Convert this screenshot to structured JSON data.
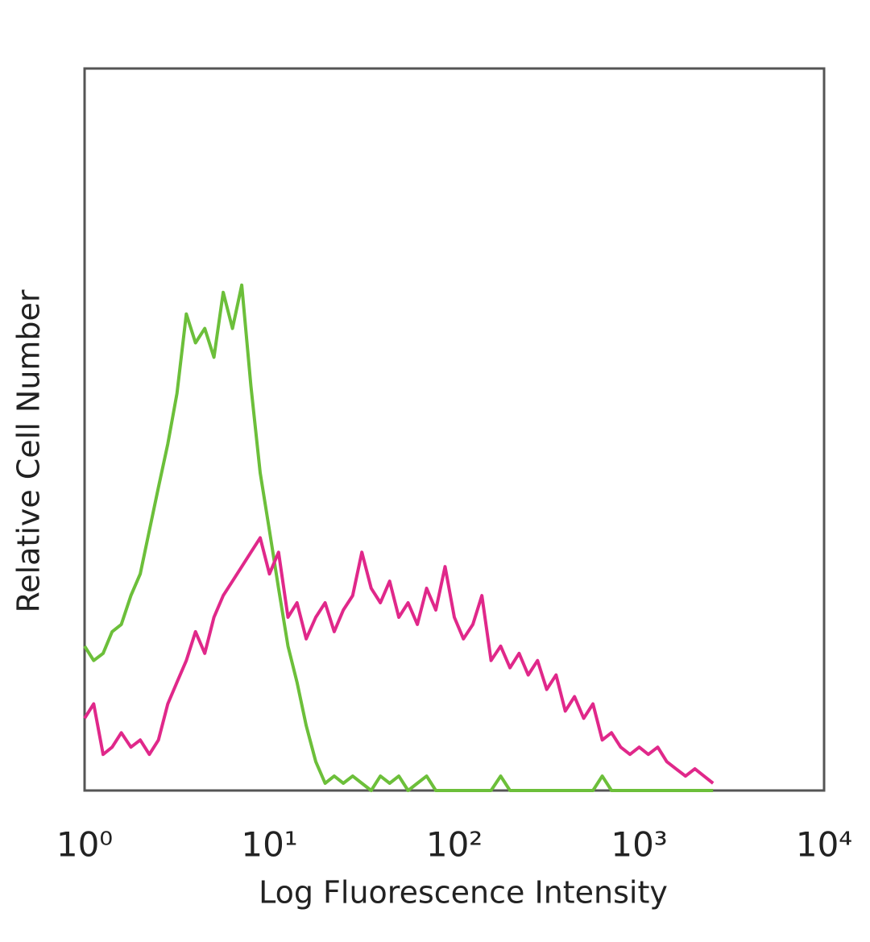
{
  "chart_data": {
    "type": "line",
    "x_label": "Log Fluorescence Intensity",
    "y_label": "Relative Cell Number",
    "log_x": true,
    "xlim": [
      1,
      10000
    ],
    "xticks": [
      {
        "value": 1,
        "label": "10⁰"
      },
      {
        "value": 10,
        "label": "10¹"
      },
      {
        "value": 100,
        "label": "10²"
      },
      {
        "value": 1000,
        "label": "10³"
      },
      {
        "value": 10000,
        "label": "10⁴"
      }
    ],
    "ylim": [
      0,
      100
    ],
    "x": [
      1,
      1.12,
      1.26,
      1.41,
      1.58,
      1.78,
      2,
      2.24,
      2.51,
      2.82,
      3.16,
      3.55,
      3.98,
      4.47,
      5.01,
      5.62,
      6.31,
      7.08,
      7.94,
      8.91,
      10,
      11.2,
      12.6,
      14.1,
      15.8,
      17.8,
      20,
      22.4,
      25.1,
      28.2,
      31.6,
      35.5,
      39.8,
      44.7,
      50.1,
      56.2,
      63.1,
      70.8,
      79.4,
      89.1,
      100,
      112,
      126,
      141,
      158,
      178,
      200,
      224,
      251,
      282,
      316,
      355,
      398,
      447,
      501,
      562,
      631,
      708,
      794,
      891,
      1000,
      1120,
      1260,
      1410,
      1580,
      1780,
      2000,
      2240,
      2510
    ],
    "series": [
      {
        "color": "#6cbf3a",
        "values": [
          20,
          18,
          19,
          22,
          23,
          27,
          30,
          36,
          42,
          48,
          55,
          66,
          62,
          64,
          60,
          69,
          64,
          70,
          56,
          44,
          36,
          28,
          20,
          15,
          9,
          4,
          1,
          2,
          1,
          2,
          1,
          0,
          2,
          1,
          2,
          0,
          1,
          2,
          0,
          0,
          0,
          0,
          0,
          0,
          0,
          2,
          0,
          0,
          0,
          0,
          0,
          0,
          0,
          0,
          0,
          0,
          2,
          0,
          0,
          0,
          0,
          0,
          0,
          0,
          0,
          0,
          0,
          0,
          0
        ]
      },
      {
        "color": "#e0288a",
        "values": [
          10,
          12,
          5,
          6,
          8,
          6,
          7,
          5,
          7,
          12,
          15,
          18,
          22,
          19,
          24,
          27,
          29,
          31,
          33,
          35,
          30,
          33,
          24,
          26,
          21,
          24,
          26,
          22,
          25,
          27,
          33,
          28,
          26,
          29,
          24,
          26,
          23,
          28,
          25,
          31,
          24,
          21,
          23,
          27,
          18,
          20,
          17,
          19,
          16,
          18,
          14,
          16,
          11,
          13,
          10,
          12,
          7,
          8,
          6,
          5,
          6,
          5,
          6,
          4,
          3,
          2,
          3,
          2,
          1
        ]
      }
    ]
  }
}
